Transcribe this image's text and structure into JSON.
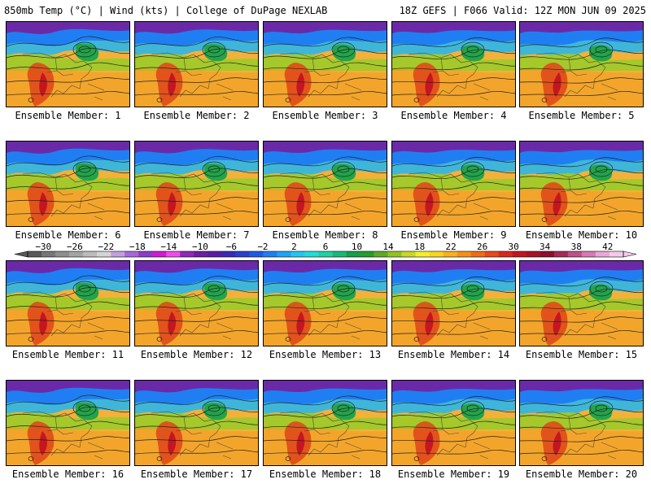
{
  "header": {
    "left": "850mb Temp (°C) | Wind (kts) | College of DuPage NEXLAB",
    "right": "18Z GEFS | F066 Valid: 12Z MON JUN 09 2025"
  },
  "panel_label_prefix": "Ensemble Member: ",
  "members": [
    "1",
    "2",
    "3",
    "4",
    "5",
    "6",
    "7",
    "8",
    "9",
    "10",
    "11",
    "12",
    "13",
    "14",
    "15",
    "16",
    "17",
    "18",
    "19",
    "20"
  ],
  "colorbar": {
    "tick_labels": [
      "−30",
      "−26",
      "−22",
      "−18",
      "−14",
      "−10",
      "−6",
      "−2",
      "2",
      "6",
      "10",
      "14",
      "18",
      "22",
      "26",
      "30",
      "34",
      "38",
      "42"
    ],
    "range": [
      -32,
      44
    ],
    "colors": [
      "#585858",
      "#777777",
      "#8e8e8e",
      "#a4a4a4",
      "#bcbcbc",
      "#d4d4d4",
      "#c2a0e0",
      "#a867d8",
      "#8a3dc8",
      "#d21bd2",
      "#ee4bee",
      "#8e2ab3",
      "#6d1ea6",
      "#5a1da5",
      "#3b2ab5",
      "#2a3fd0",
      "#1d5be6",
      "#1f7ff2",
      "#1ea3f8",
      "#24c6f1",
      "#22dcd7",
      "#1ed1a6",
      "#18b977",
      "#139f4c",
      "#279c2f",
      "#5dab25",
      "#93c21f",
      "#c6d825",
      "#f2ee2a",
      "#f8d61f",
      "#f8b11b",
      "#f58f16",
      "#f06c14",
      "#e8491a",
      "#d8281c",
      "#c21420",
      "#a81226",
      "#8c0f2c",
      "#a52a5a",
      "#c05088",
      "#d879b4",
      "#eba6d7",
      "#f4caeb"
    ]
  }
}
